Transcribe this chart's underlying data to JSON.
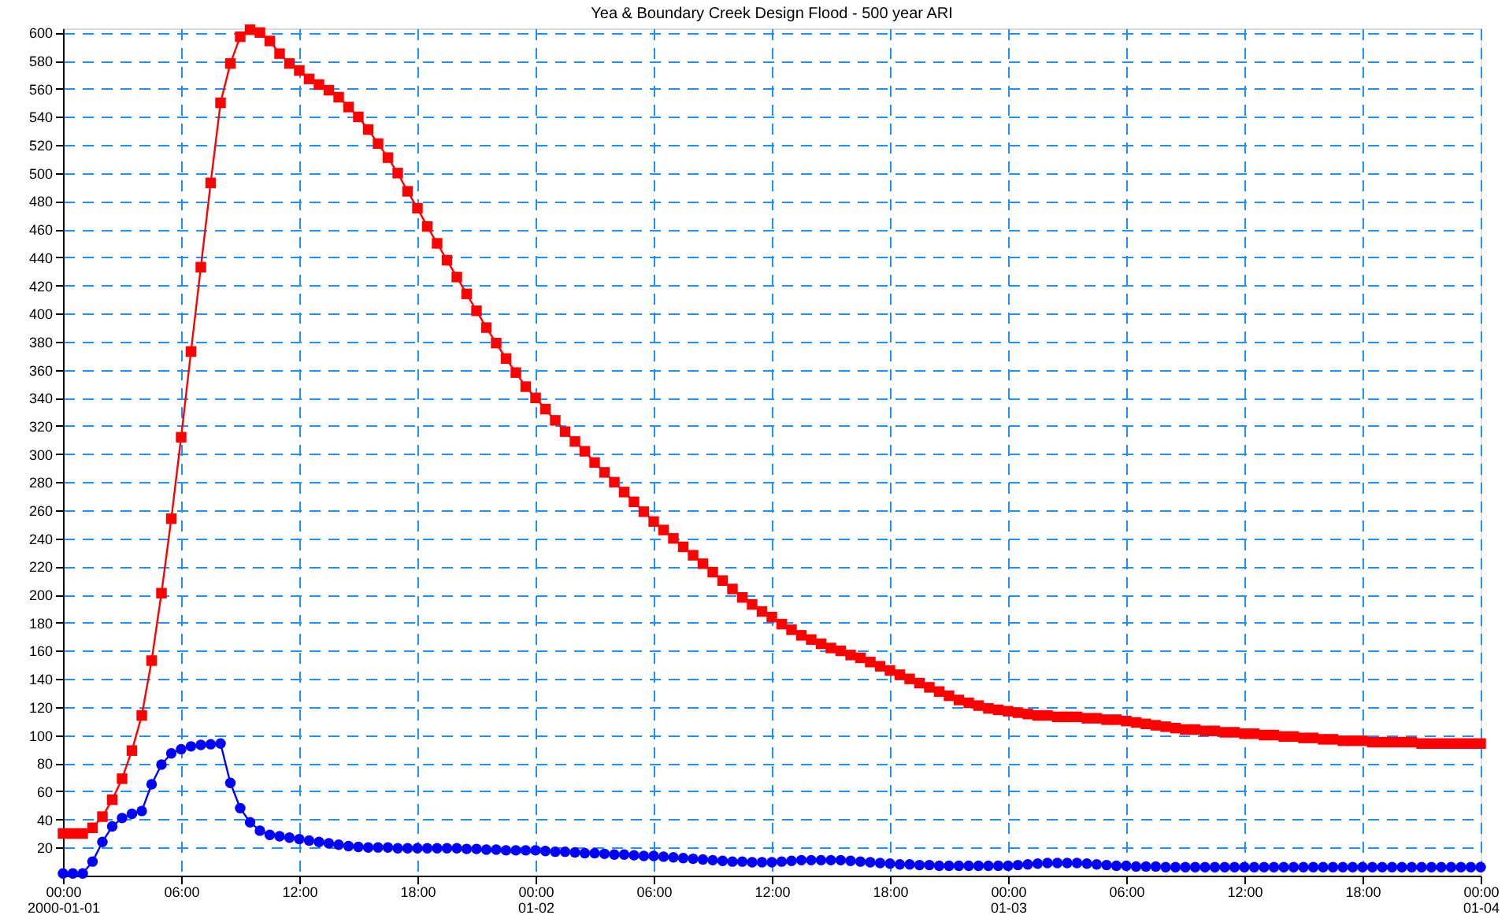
{
  "chart_data": {
    "type": "line",
    "title": "Yea & Boundary Creek Design Flood - 500 year ARI",
    "x": [
      "2000-01-01T00:00",
      "2000-01-01T00:30",
      "2000-01-01T01:00",
      "2000-01-01T01:30",
      "2000-01-01T02:00",
      "2000-01-01T02:30",
      "2000-01-01T03:00",
      "2000-01-01T03:30",
      "2000-01-01T04:00",
      "2000-01-01T04:30",
      "2000-01-01T05:00",
      "2000-01-01T05:30",
      "2000-01-01T06:00",
      "2000-01-01T06:30",
      "2000-01-01T07:00",
      "2000-01-01T07:30",
      "2000-01-01T08:00",
      "2000-01-01T08:30",
      "2000-01-01T09:00",
      "2000-01-01T09:30",
      "2000-01-01T10:00",
      "2000-01-01T10:30",
      "2000-01-01T11:00",
      "2000-01-01T11:30",
      "2000-01-01T12:00",
      "2000-01-01T12:30",
      "2000-01-01T13:00",
      "2000-01-01T13:30",
      "2000-01-01T14:00",
      "2000-01-01T14:30",
      "2000-01-01T15:00",
      "2000-01-01T15:30",
      "2000-01-01T16:00",
      "2000-01-01T16:30",
      "2000-01-01T17:00",
      "2000-01-01T17:30",
      "2000-01-01T18:00",
      "2000-01-01T18:30",
      "2000-01-01T19:00",
      "2000-01-01T19:30",
      "2000-01-01T20:00",
      "2000-01-01T20:30",
      "2000-01-01T21:00",
      "2000-01-01T21:30",
      "2000-01-01T22:00",
      "2000-01-01T22:30",
      "2000-01-01T23:00",
      "2000-01-01T23:30",
      "2000-01-02T00:00",
      "2000-01-02T00:30",
      "2000-01-02T01:00",
      "2000-01-02T01:30",
      "2000-01-02T02:00",
      "2000-01-02T02:30",
      "2000-01-02T03:00",
      "2000-01-02T03:30",
      "2000-01-02T04:00",
      "2000-01-02T04:30",
      "2000-01-02T05:00",
      "2000-01-02T05:30",
      "2000-01-02T06:00",
      "2000-01-02T06:30",
      "2000-01-02T07:00",
      "2000-01-02T07:30",
      "2000-01-02T08:00",
      "2000-01-02T08:30",
      "2000-01-02T09:00",
      "2000-01-02T09:30",
      "2000-01-02T10:00",
      "2000-01-02T10:30",
      "2000-01-02T11:00",
      "2000-01-02T11:30",
      "2000-01-02T12:00",
      "2000-01-02T12:30",
      "2000-01-02T13:00",
      "2000-01-02T13:30",
      "2000-01-02T14:00",
      "2000-01-02T14:30",
      "2000-01-02T15:00",
      "2000-01-02T15:30",
      "2000-01-02T16:00",
      "2000-01-02T16:30",
      "2000-01-02T17:00",
      "2000-01-02T17:30",
      "2000-01-02T18:00",
      "2000-01-02T18:30",
      "2000-01-02T19:00",
      "2000-01-02T19:30",
      "2000-01-02T20:00",
      "2000-01-02T20:30",
      "2000-01-02T21:00",
      "2000-01-02T21:30",
      "2000-01-02T22:00",
      "2000-01-02T22:30",
      "2000-01-02T23:00",
      "2000-01-02T23:30",
      "2000-01-03T00:00",
      "2000-01-03T00:30",
      "2000-01-03T01:00",
      "2000-01-03T01:30",
      "2000-01-03T02:00",
      "2000-01-03T02:30",
      "2000-01-03T03:00",
      "2000-01-03T03:30",
      "2000-01-03T04:00",
      "2000-01-03T04:30",
      "2000-01-03T05:00",
      "2000-01-03T05:30",
      "2000-01-03T06:00",
      "2000-01-03T06:30",
      "2000-01-03T07:00",
      "2000-01-03T07:30",
      "2000-01-03T08:00",
      "2000-01-03T08:30",
      "2000-01-03T09:00",
      "2000-01-03T09:30",
      "2000-01-03T10:00",
      "2000-01-03T10:30",
      "2000-01-03T11:00",
      "2000-01-03T11:30",
      "2000-01-03T12:00",
      "2000-01-03T12:30",
      "2000-01-03T13:00",
      "2000-01-03T13:30",
      "2000-01-03T14:00",
      "2000-01-03T14:30",
      "2000-01-03T15:00",
      "2000-01-03T15:30",
      "2000-01-03T16:00",
      "2000-01-03T16:30",
      "2000-01-03T17:00",
      "2000-01-03T17:30",
      "2000-01-03T18:00",
      "2000-01-03T18:30",
      "2000-01-03T19:00",
      "2000-01-03T19:30",
      "2000-01-03T20:00",
      "2000-01-03T20:30",
      "2000-01-03T21:00",
      "2000-01-03T21:30",
      "2000-01-03T22:00",
      "2000-01-03T22:30",
      "2000-01-03T23:00",
      "2000-01-03T23:30",
      "2000-01-04T00:00"
    ],
    "series": [
      {
        "color": "#ff0000",
        "marker": "square",
        "values": [
          30,
          30,
          30,
          34,
          42,
          54,
          69,
          89,
          114,
          153,
          201,
          254,
          312,
          373,
          433,
          493,
          550,
          578,
          597,
          602,
          600,
          594,
          585,
          578,
          573,
          567,
          563,
          559,
          554,
          547,
          540,
          531,
          521,
          511,
          500,
          487,
          475,
          462,
          450,
          438,
          426,
          414,
          402,
          390,
          379,
          368,
          358,
          348,
          340,
          332,
          324,
          316,
          309,
          302,
          294,
          287,
          280,
          273,
          266,
          259,
          252,
          246,
          240,
          234,
          228,
          222,
          216,
          210,
          204,
          198,
          193,
          188,
          184,
          179,
          175,
          171,
          168,
          165,
          162,
          160,
          157,
          155,
          152,
          149,
          146,
          143,
          140,
          137,
          134,
          131,
          128,
          125,
          123,
          121,
          119,
          118,
          117,
          116,
          115,
          114,
          114,
          113,
          113,
          113,
          112,
          112,
          111,
          111,
          110,
          109,
          108,
          107,
          106,
          105,
          104,
          104,
          103,
          103,
          102,
          102,
          101,
          101,
          100,
          100,
          99,
          99,
          98,
          98,
          97,
          97,
          96,
          96,
          96,
          95,
          95,
          95,
          95,
          95,
          94,
          94,
          94,
          94,
          94,
          94,
          94
        ]
      },
      {
        "color": "#0000ff",
        "marker": "circle",
        "values": [
          1.5,
          1.5,
          1.5,
          10,
          24,
          35,
          41,
          44,
          46,
          65,
          79,
          87,
          90,
          92,
          93,
          93.5,
          94,
          66,
          48,
          38,
          32,
          29,
          28,
          27,
          26,
          25,
          24,
          23,
          22,
          21,
          20.5,
          20,
          20,
          20,
          19.5,
          19.5,
          19.5,
          19.5,
          19.5,
          19.5,
          19.5,
          19,
          19,
          18.5,
          18.5,
          18,
          18,
          18,
          18,
          17.5,
          17,
          17,
          16.5,
          16,
          16,
          15.5,
          15,
          15,
          14.5,
          14,
          14,
          13.5,
          13,
          12.5,
          12,
          11.5,
          11,
          10.5,
          10,
          10,
          9.5,
          9.5,
          9.5,
          10,
          10.5,
          11,
          11,
          11,
          11,
          11,
          10.5,
          10,
          9.5,
          9,
          8.5,
          8,
          8,
          7.5,
          7.5,
          7,
          7,
          7,
          7,
          7,
          7,
          7,
          7,
          7.5,
          8,
          8.5,
          9,
          9,
          9,
          9,
          8.5,
          8,
          7.5,
          7,
          7,
          6.5,
          6.5,
          6.5,
          6,
          6,
          6,
          6,
          6,
          6,
          6,
          6,
          6,
          6,
          6,
          6,
          6,
          6,
          6,
          6,
          6,
          6,
          6,
          6,
          6,
          6,
          6,
          6,
          6,
          6,
          6,
          6,
          6,
          6,
          6,
          6,
          6
        ]
      }
    ],
    "xlim": [
      "2000-01-01T00:00",
      "2000-01-04T00:00"
    ],
    "xticks": [
      {
        "value": "2000-01-01T00:00",
        "label": "00:00\n2000-01-01"
      },
      {
        "value": "2000-01-01T06:00",
        "label": "06:00"
      },
      {
        "value": "2000-01-01T12:00",
        "label": "12:00"
      },
      {
        "value": "2000-01-01T18:00",
        "label": "18:00"
      },
      {
        "value": "2000-01-02T00:00",
        "label": "00:00\n01-02"
      },
      {
        "value": "2000-01-02T06:00",
        "label": "06:00"
      },
      {
        "value": "2000-01-02T12:00",
        "label": "12:00"
      },
      {
        "value": "2000-01-02T18:00",
        "label": "18:00"
      },
      {
        "value": "2000-01-03T00:00",
        "label": "00:00\n01-03"
      },
      {
        "value": "2000-01-03T06:00",
        "label": "06:00"
      },
      {
        "value": "2000-01-03T12:00",
        "label": "12:00"
      },
      {
        "value": "2000-01-03T18:00",
        "label": "18:00"
      },
      {
        "value": "2000-01-04T00:00",
        "label": "00:00\n01-04"
      }
    ],
    "ylim": [
      0,
      603
    ],
    "yticks": [
      20,
      40,
      60,
      80,
      100,
      120,
      140,
      160,
      180,
      200,
      220,
      240,
      260,
      280,
      300,
      320,
      340,
      360,
      380,
      400,
      420,
      440,
      460,
      480,
      500,
      520,
      540,
      560,
      580,
      600
    ],
    "grid": true,
    "legend": false,
    "line_style": "solid"
  }
}
